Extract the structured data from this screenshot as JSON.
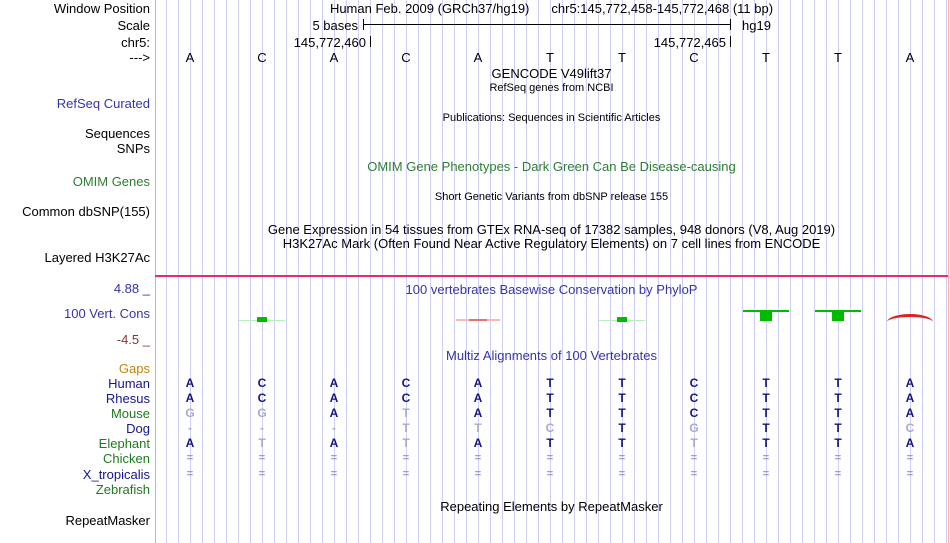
{
  "header": {
    "left_label": "Window Position",
    "assembly_title": "Human Feb. 2009 (GRCh37/hg19)",
    "range_title": "chr5:145,772,458-145,772,468 (11 bp)"
  },
  "scale": {
    "left_label": "Scale",
    "bar_label": "5 bases",
    "assembly": "hg19"
  },
  "position_ruler": {
    "left_label": "chr5:",
    "tick_left": "145,772,460",
    "tick_right": "145,772,465"
  },
  "sequence": {
    "left_label": "--->",
    "bases": [
      "A",
      "C",
      "A",
      "C",
      "A",
      "T",
      "T",
      "C",
      "T",
      "T",
      "A"
    ]
  },
  "gencode": {
    "title": "GENCODE V49lift37",
    "subtitle": "RefSeq genes from NCBI",
    "left_label": "RefSeq Curated"
  },
  "publications": {
    "title": "Publications: Sequences in Scientific Articles",
    "left_label_sequences": "Sequences",
    "left_label_snps": "SNPs"
  },
  "omim": {
    "title": "OMIM Gene Phenotypes - Dark Green Can Be Disease-causing",
    "left_label": "OMIM Genes"
  },
  "dbsnp": {
    "title": "Short Genetic Variants from dbSNP release 155",
    "left_label": "Common dbSNP(155)"
  },
  "gtex": {
    "title": "Gene Expression in 54 tissues from GTEx RNA-seq of 17382 samples, 948 donors (V8, Aug 2019)"
  },
  "h3k27ac": {
    "title": "H3K27Ac Mark (Often Found Near Active Regulatory Elements) on 7 cell lines from ENCODE",
    "left_label": "Layered H3K27Ac"
  },
  "phylop": {
    "title": "100 vertebrates Basewise Conservation by PhyloP",
    "left_label": "100 Vert. Cons",
    "axis_max": "4.88 _",
    "axis_min": "-4.5 _",
    "marks": [
      {
        "col": 1,
        "kind": "pos_small"
      },
      {
        "col": 4,
        "kind": "neg_line"
      },
      {
        "col": 6,
        "kind": "pos_small"
      },
      {
        "col": 8,
        "kind": "pos_med"
      },
      {
        "col": 9,
        "kind": "pos_med"
      },
      {
        "col": 10,
        "kind": "neg_arc"
      }
    ],
    "colors": {
      "positive": "#00bb00",
      "negative": "#dd2222"
    }
  },
  "multiz": {
    "title": "Multiz Alignments of 100 Vertebrates",
    "gaps_label": "Gaps",
    "rows": [
      {
        "label": "Human",
        "label_class": "navy",
        "cells": [
          [
            "A",
            0
          ],
          [
            "C",
            0
          ],
          [
            "A",
            0
          ],
          [
            "C",
            0
          ],
          [
            "A",
            0
          ],
          [
            "T",
            0
          ],
          [
            "T",
            0
          ],
          [
            "C",
            0
          ],
          [
            "T",
            0
          ],
          [
            "T",
            0
          ],
          [
            "A",
            0
          ]
        ]
      },
      {
        "label": "Rhesus",
        "label_class": "navy",
        "cells": [
          [
            "A",
            0
          ],
          [
            "C",
            0
          ],
          [
            "A",
            0
          ],
          [
            "C",
            0
          ],
          [
            "A",
            0
          ],
          [
            "T",
            0
          ],
          [
            "T",
            0
          ],
          [
            "C",
            0
          ],
          [
            "T",
            0
          ],
          [
            "T",
            0
          ],
          [
            "A",
            0
          ]
        ]
      },
      {
        "label": "Mouse",
        "label_class": "green",
        "cells": [
          [
            "G",
            1
          ],
          [
            "G",
            1
          ],
          [
            "A",
            0
          ],
          [
            "T",
            1
          ],
          [
            "A",
            0
          ],
          [
            "T",
            0
          ],
          [
            "T",
            0
          ],
          [
            "C",
            0
          ],
          [
            "T",
            0
          ],
          [
            "T",
            0
          ],
          [
            "A",
            0
          ]
        ]
      },
      {
        "label": "Dog",
        "label_class": "navy",
        "cells": [
          [
            "-",
            1
          ],
          [
            "-",
            1
          ],
          [
            "-",
            1
          ],
          [
            "T",
            1
          ],
          [
            "T",
            1
          ],
          [
            "C",
            1
          ],
          [
            "T",
            0
          ],
          [
            "G",
            1
          ],
          [
            "T",
            0
          ],
          [
            "T",
            0
          ],
          [
            "C",
            1
          ]
        ]
      },
      {
        "label": "Elephant",
        "label_class": "green",
        "cells": [
          [
            "A",
            0
          ],
          [
            "T",
            1
          ],
          [
            "A",
            0
          ],
          [
            "T",
            1
          ],
          [
            "A",
            0
          ],
          [
            "T",
            0
          ],
          [
            "T",
            0
          ],
          [
            "T",
            1
          ],
          [
            "T",
            0
          ],
          [
            "T",
            0
          ],
          [
            "A",
            0
          ]
        ]
      },
      {
        "label": "Chicken",
        "label_class": "green",
        "cells": [
          [
            "=",
            2
          ],
          [
            "=",
            2
          ],
          [
            "=",
            2
          ],
          [
            "=",
            2
          ],
          [
            "=",
            2
          ],
          [
            "=",
            2
          ],
          [
            "=",
            2
          ],
          [
            "=",
            2
          ],
          [
            "=",
            2
          ],
          [
            "=",
            2
          ],
          [
            "=",
            2
          ]
        ]
      },
      {
        "label": "X_tropicalis",
        "label_class": "navy",
        "cells": [
          [
            "=",
            2
          ],
          [
            "=",
            2
          ],
          [
            "=",
            2
          ],
          [
            "=",
            2
          ],
          [
            "=",
            2
          ],
          [
            "=",
            2
          ],
          [
            "=",
            2
          ],
          [
            "=",
            2
          ],
          [
            "=",
            2
          ],
          [
            "=",
            2
          ],
          [
            "=",
            2
          ]
        ]
      },
      {
        "label": "Zebrafish",
        "label_class": "green",
        "cells": []
      }
    ]
  },
  "repeatmasker": {
    "title": "Repeating Elements by RepeatMasker",
    "left_label": "RepeatMasker"
  }
}
